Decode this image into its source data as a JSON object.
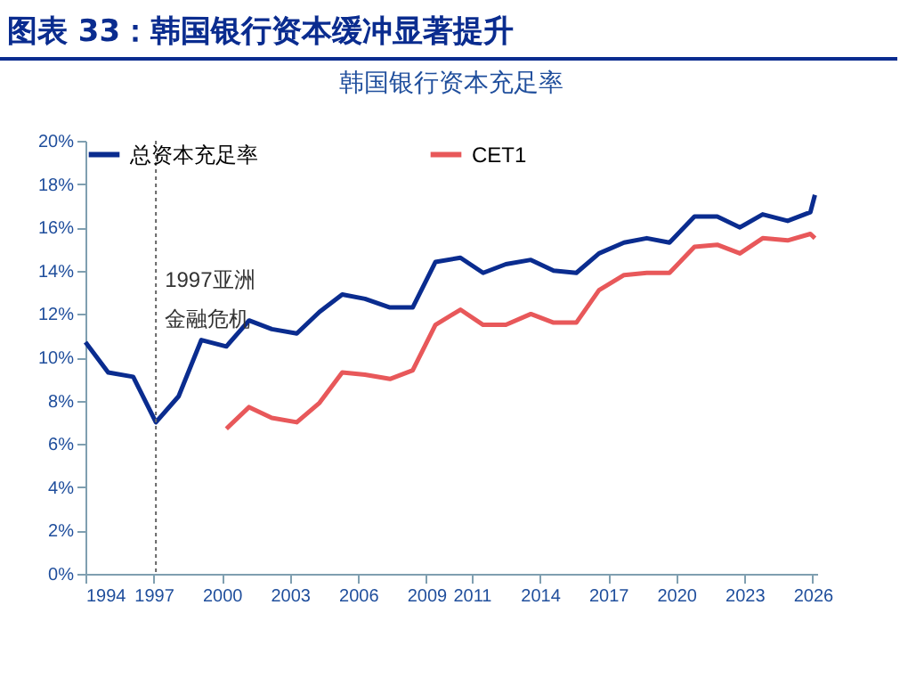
{
  "chart_data": {
    "type": "line",
    "title": "图表 33：韩国银行资本缓冲显著提升",
    "subtitle": "韩国银行资本充足率",
    "series": [
      {
        "name": "总资本充足率",
        "color": "#0a2c8f",
        "x": [
          1994.0,
          1995.0,
          1996.1,
          1997.1,
          1998.1,
          1999.1,
          2000.2,
          2001.2,
          2002.2,
          2003.3,
          2004.3,
          2005.3,
          2006.3,
          2007.4,
          2008.4,
          2009.4,
          2010.5,
          2011.5,
          2012.5,
          2013.6,
          2014.6,
          2015.6,
          2016.6,
          2017.7,
          2018.7,
          2019.7,
          2020.8,
          2021.8,
          2022.8,
          2023.8,
          2024.9,
          2025.9,
          2026.1
        ],
        "values": [
          10.7,
          9.3,
          9.1,
          7.0,
          8.2,
          10.8,
          10.5,
          11.7,
          11.3,
          11.1,
          12.1,
          12.9,
          12.7,
          12.3,
          12.3,
          14.4,
          14.6,
          13.9,
          14.3,
          14.5,
          14.0,
          13.9,
          14.8,
          15.3,
          15.5,
          15.3,
          16.5,
          16.5,
          16.0,
          16.6,
          16.3,
          16.7,
          17.5
        ]
      },
      {
        "name": "CET1",
        "color": "#e8585a",
        "x": [
          2000.2,
          2001.2,
          2002.2,
          2003.3,
          2004.3,
          2005.3,
          2006.3,
          2007.4,
          2008.4,
          2009.4,
          2010.5,
          2011.5,
          2012.5,
          2013.6,
          2014.6,
          2015.6,
          2016.6,
          2017.7,
          2018.7,
          2019.7,
          2020.8,
          2021.8,
          2022.8,
          2023.8,
          2024.9,
          2025.9,
          2026.1
        ],
        "values": [
          6.7,
          7.7,
          7.2,
          7.0,
          7.9,
          9.3,
          9.2,
          9.0,
          9.4,
          11.5,
          12.2,
          11.5,
          11.5,
          12.0,
          11.6,
          11.6,
          13.1,
          13.8,
          13.9,
          13.9,
          15.1,
          15.2,
          14.8,
          15.5,
          15.4,
          15.7,
          15.5
        ]
      }
    ],
    "xlim": [
      1994,
      2026.2
    ],
    "xticks": [
      1994,
      1997,
      2000,
      2003,
      2006,
      2009,
      2011,
      2014,
      2017,
      2020,
      2023,
      2026
    ],
    "ylim": [
      0,
      20
    ],
    "yticks": [
      {
        "value": 0,
        "label": "0%"
      },
      {
        "value": 2,
        "label": "2%"
      },
      {
        "value": 4,
        "label": "4%"
      },
      {
        "value": 6,
        "label": "6%"
      },
      {
        "value": 8,
        "label": "8%"
      },
      {
        "value": 10,
        "label": "10%"
      },
      {
        "value": 12,
        "label": "12%"
      },
      {
        "value": 14,
        "label": "14%"
      },
      {
        "value": 16,
        "label": "16%"
      },
      {
        "value": 18,
        "label": "18%"
      },
      {
        "value": 20,
        "label": "20%"
      }
    ],
    "ref_lines": [
      {
        "axis": "x",
        "value": 1997.1,
        "label": "1997亚洲",
        "color": "#666666",
        "line_style": "dotted"
      }
    ],
    "annotations": [
      "金融危机"
    ],
    "legend": "top",
    "grid": false,
    "marker": "none",
    "line_style": "solid"
  }
}
